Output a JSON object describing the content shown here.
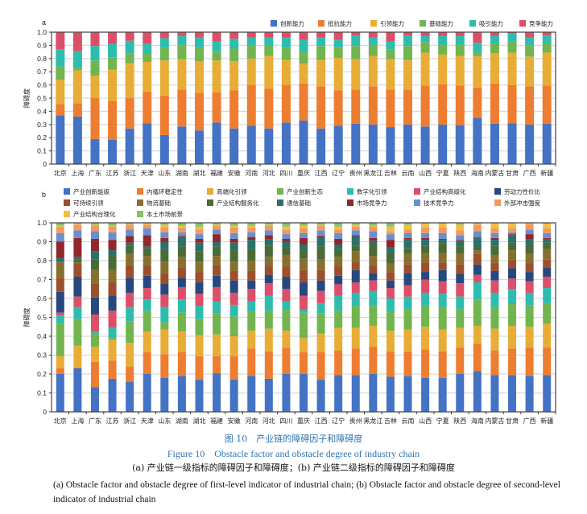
{
  "categories": [
    "北京",
    "上海",
    "广东",
    "江苏",
    "浙江",
    "天津",
    "山东",
    "湖南",
    "湖北",
    "福建",
    "安徽",
    "河南",
    "河北",
    "四川",
    "重庆",
    "江西",
    "辽宁",
    "贵州",
    "黑龙江",
    "吉林",
    "云南",
    "山西",
    "宁夏",
    "陕西",
    "海南",
    "内蒙古",
    "甘肃",
    "广西",
    "新疆"
  ],
  "caption": {
    "cn_title": "图 10　产业链的障碍因子和障碍度",
    "en_title": "Figure 10　Obstacle factor and obstacle degree of industry chain",
    "cn_sub": "(a) 产业链一级指标的障碍因子和障碍度；(b) 产业链二级指标的障碍因子和障碍度",
    "en_sub": "(a) Obstacle factor and obstacle degree of first-level indicator of industrial chain; (b) Obstacle factor and obstacle degree of second-level indicator of industrial chain"
  },
  "chart_data": [
    {
      "panel": "a",
      "type": "bar",
      "stacked": true,
      "ylabel": "障碍度",
      "ylim": [
        0,
        1.0
      ],
      "yticks": [
        "0",
        "0.1",
        "0.2",
        "0.3",
        "0.4",
        "0.5",
        "0.6",
        "0.7",
        "0.8",
        "0.9",
        "1.0"
      ],
      "grid": true,
      "legend": "top-right",
      "series": [
        {
          "name": "创新能力",
          "color": "#4472c4",
          "values": [
            0.37,
            0.36,
            0.19,
            0.185,
            0.27,
            0.31,
            0.22,
            0.285,
            0.255,
            0.315,
            0.27,
            0.29,
            0.27,
            0.315,
            0.33,
            0.27,
            0.29,
            0.305,
            0.3,
            0.28,
            0.3,
            0.285,
            0.3,
            0.295,
            0.35,
            0.305,
            0.31,
            0.3,
            0.305
          ]
        },
        {
          "name": "抵抗能力",
          "color": "#ed7d31",
          "values": [
            0.085,
            0.1,
            0.31,
            0.295,
            0.23,
            0.24,
            0.3,
            0.28,
            0.285,
            0.23,
            0.29,
            0.31,
            0.3,
            0.285,
            0.28,
            0.32,
            0.27,
            0.26,
            0.29,
            0.285,
            0.265,
            0.31,
            0.305,
            0.3,
            0.23,
            0.305,
            0.29,
            0.29,
            0.29
          ]
        },
        {
          "name": "引领能力",
          "color": "#e8ad36",
          "values": [
            0.185,
            0.25,
            0.17,
            0.235,
            0.265,
            0.225,
            0.265,
            0.23,
            0.24,
            0.24,
            0.22,
            0.2,
            0.25,
            0.19,
            0.15,
            0.2,
            0.245,
            0.23,
            0.23,
            0.23,
            0.225,
            0.25,
            0.225,
            0.225,
            0.24,
            0.23,
            0.245,
            0.225,
            0.25
          ]
        },
        {
          "name": "基础能力",
          "color": "#72b450",
          "values": [
            0.1,
            0.02,
            0.115,
            0.095,
            0.075,
            0.06,
            0.095,
            0.11,
            0.105,
            0.07,
            0.095,
            0.1,
            0.08,
            0.09,
            0.09,
            0.105,
            0.08,
            0.1,
            0.085,
            0.075,
            0.105,
            0.08,
            0.075,
            0.085,
            0.025,
            0.075,
            0.085,
            0.085,
            0.07
          ]
        },
        {
          "name": "吸引能力",
          "color": "#2ebcaf",
          "values": [
            0.13,
            0.125,
            0.11,
            0.1,
            0.095,
            0.075,
            0.075,
            0.065,
            0.075,
            0.075,
            0.075,
            0.06,
            0.06,
            0.08,
            0.09,
            0.065,
            0.06,
            0.08,
            0.055,
            0.06,
            0.08,
            0.045,
            0.065,
            0.065,
            0.075,
            0.055,
            0.06,
            0.06,
            0.06
          ]
        },
        {
          "name": "竞争能力",
          "color": "#dc4f69",
          "values": [
            0.13,
            0.14,
            0.105,
            0.09,
            0.065,
            0.09,
            0.05,
            0.03,
            0.04,
            0.07,
            0.05,
            0.04,
            0.04,
            0.04,
            0.06,
            0.04,
            0.055,
            0.025,
            0.04,
            0.07,
            0.025,
            0.03,
            0.03,
            0.03,
            0.08,
            0.03,
            0.01,
            0.045,
            0.03
          ]
        }
      ]
    },
    {
      "panel": "b",
      "type": "bar",
      "stacked": true,
      "ylabel": "障碍度",
      "ylim": [
        0,
        1.0
      ],
      "yticks": [
        "0",
        "0.1",
        "0.2",
        "0.3",
        "0.4",
        "0.5",
        "0.6",
        "0.7",
        "0.8",
        "0.9",
        "1.0"
      ],
      "grid": true,
      "legend": "top",
      "series": [
        {
          "name": "产业创新能级",
          "color": "#4472c4",
          "values": [
            0.2,
            0.23,
            0.13,
            0.175,
            0.16,
            0.2,
            0.18,
            0.19,
            0.17,
            0.205,
            0.17,
            0.19,
            0.175,
            0.2,
            0.2,
            0.17,
            0.195,
            0.195,
            0.2,
            0.185,
            0.19,
            0.18,
            0.18,
            0.2,
            0.215,
            0.195,
            0.195,
            0.19,
            0.195
          ]
        },
        {
          "name": "内循环稳定性",
          "color": "#ed7d31",
          "values": [
            0.03,
            0.005,
            0.135,
            0.095,
            0.08,
            0.115,
            0.125,
            0.125,
            0.125,
            0.09,
            0.125,
            0.145,
            0.145,
            0.14,
            0.115,
            0.145,
            0.13,
            0.14,
            0.145,
            0.135,
            0.13,
            0.15,
            0.14,
            0.14,
            0.145,
            0.13,
            0.14,
            0.15,
            0.145
          ]
        },
        {
          "name": "高端化引领",
          "color": "#e8ad36",
          "values": [
            0.065,
            0.115,
            0.08,
            0.11,
            0.125,
            0.11,
            0.13,
            0.11,
            0.11,
            0.115,
            0.105,
            0.095,
            0.12,
            0.09,
            0.075,
            0.1,
            0.12,
            0.11,
            0.11,
            0.11,
            0.115,
            0.12,
            0.115,
            0.105,
            0.095,
            0.115,
            0.12,
            0.11,
            0.125
          ]
        },
        {
          "name": "产业创新生态",
          "color": "#72b450",
          "values": [
            0.17,
            0.14,
            0.07,
            0.01,
            0.115,
            0.11,
            0.04,
            0.1,
            0.085,
            0.11,
            0.105,
            0.1,
            0.095,
            0.11,
            0.135,
            0.105,
            0.09,
            0.115,
            0.105,
            0.1,
            0.11,
            0.11,
            0.12,
            0.1,
            0.14,
            0.115,
            0.115,
            0.115,
            0.11
          ]
        },
        {
          "name": "数字化引领",
          "color": "#2ebcaf",
          "values": [
            0.045,
            0.065,
            0.01,
            0.055,
            0.075,
            0.06,
            0.08,
            0.07,
            0.07,
            0.065,
            0.06,
            0.055,
            0.08,
            0.045,
            0.015,
            0.055,
            0.08,
            0.07,
            0.08,
            0.07,
            0.065,
            0.07,
            0.07,
            0.065,
            0.09,
            0.075,
            0.08,
            0.065,
            0.08
          ]
        },
        {
          "name": "产业结构高级化",
          "color": "#dc4f69",
          "values": [
            0.015,
            0.055,
            0.09,
            0.09,
            0.075,
            0.06,
            0.065,
            0.065,
            0.065,
            0.075,
            0.065,
            0.065,
            0.065,
            0.065,
            0.075,
            0.065,
            0.06,
            0.055,
            0.055,
            0.055,
            0.06,
            0.07,
            0.065,
            0.07,
            0.04,
            0.065,
            0.055,
            0.06,
            0.06
          ]
        },
        {
          "name": "劳动力性价比",
          "color": "#27487f",
          "values": [
            0.11,
            0.105,
            0.09,
            0.08,
            0.08,
            0.065,
            0.06,
            0.05,
            0.06,
            0.06,
            0.065,
            0.045,
            0.045,
            0.065,
            0.07,
            0.055,
            0.045,
            0.065,
            0.04,
            0.04,
            0.065,
            0.04,
            0.06,
            0.05,
            0.055,
            0.05,
            0.055,
            0.05,
            0.05
          ]
        },
        {
          "name": "可持续引领",
          "color": "#9b4f2c",
          "values": [
            0.075,
            0.07,
            0.075,
            0.07,
            0.065,
            0.055,
            0.055,
            0.055,
            0.055,
            0.055,
            0.05,
            0.05,
            0.045,
            0.055,
            0.065,
            0.055,
            0.05,
            0.045,
            0.04,
            0.045,
            0.045,
            0.05,
            0.04,
            0.05,
            0.055,
            0.04,
            0.04,
            0.045,
            0.04
          ]
        },
        {
          "name": "物流基础",
          "color": "#87702f",
          "values": [
            0.08,
            0.005,
            0.07,
            0.065,
            0.06,
            0.05,
            0.06,
            0.055,
            0.055,
            0.05,
            0.05,
            0.055,
            0.05,
            0.06,
            0.06,
            0.055,
            0.05,
            0.055,
            0.05,
            0.045,
            0.055,
            0.05,
            0.05,
            0.055,
            0.02,
            0.045,
            0.055,
            0.05,
            0.055
          ]
        },
        {
          "name": "产业结构服务化",
          "color": "#4a6b35",
          "values": [
            0.005,
            0.015,
            0.055,
            0.08,
            0.045,
            0.04,
            0.065,
            0.055,
            0.055,
            0.05,
            0.06,
            0.06,
            0.06,
            0.04,
            0.045,
            0.07,
            0.04,
            0.03,
            0.06,
            0.055,
            0.03,
            0.04,
            0.05,
            0.04,
            0.015,
            0.05,
            0.04,
            0.05,
            0.035
          ]
        },
        {
          "name": "通信基础",
          "color": "#2b7069",
          "values": [
            0.02,
            0.015,
            0.045,
            0.025,
            0.015,
            0.01,
            0.04,
            0.05,
            0.045,
            0.025,
            0.04,
            0.05,
            0.035,
            0.03,
            0.03,
            0.045,
            0.025,
            0.05,
            0.02,
            0.03,
            0.05,
            0.03,
            0.02,
            0.03,
            0.05,
            0.03,
            0.04,
            0.03,
            0.02
          ]
        },
        {
          "name": "市场竞争力",
          "color": "#92262d",
          "values": [
            0.085,
            0.1,
            0.065,
            0.055,
            0.035,
            0.06,
            0.02,
            0.005,
            0.02,
            0.04,
            0.02,
            0.015,
            0.02,
            0.015,
            0.035,
            0.01,
            0.03,
            0.005,
            0.015,
            0.04,
            0.005,
            0.01,
            0.005,
            0.005,
            0.005,
            0.01,
            0.005,
            0.025,
            0.005
          ]
        },
        {
          "name": "技术竞争力",
          "color": "#6a8fcf",
          "values": [
            0.045,
            0.04,
            0.04,
            0.04,
            0.035,
            0.035,
            0.03,
            0.02,
            0.025,
            0.025,
            0.03,
            0.025,
            0.025,
            0.025,
            0.025,
            0.03,
            0.03,
            0.025,
            0.035,
            0.03,
            0.025,
            0.025,
            0.03,
            0.025,
            0.03,
            0.025,
            0.01,
            0.025,
            0.025
          ]
        },
        {
          "name": "外部冲击强度",
          "color": "#ee9a63",
          "values": [
            0.035,
            0.03,
            0.03,
            0.03,
            0.025,
            0.02,
            0.025,
            0.025,
            0.025,
            0.02,
            0.03,
            0.025,
            0.025,
            0.025,
            0.025,
            0.025,
            0.02,
            0.02,
            0.025,
            0.015,
            0.02,
            0.03,
            0.03,
            0.025,
            0.035,
            0.025,
            0.02,
            0.03,
            0.025
          ]
        },
        {
          "name": "产业结构合理化",
          "color": "#f5bd45",
          "values": [
            0.005,
            0.005,
            0.005,
            0.005,
            0.003,
            0.005,
            0.015,
            0.01,
            0.015,
            0.005,
            0.01,
            0.01,
            0.005,
            0.015,
            0.015,
            0.005,
            0.015,
            0.01,
            0.005,
            0.025,
            0.025,
            0.02,
            0.02,
            0.03,
            0.005,
            0.03,
            0.03,
            0.005,
            0.025
          ]
        },
        {
          "name": "本土市场前景",
          "color": "#86c06c",
          "values": [
            0.015,
            0.02,
            0.02,
            0.015,
            0.01,
            0.015,
            0.015,
            0.015,
            0.01,
            0.015,
            0.015,
            0.01,
            0.015,
            0.015,
            0.015,
            0.015,
            0.01,
            0.015,
            0.015,
            0.015,
            0.01,
            0.005,
            0.005,
            0.01,
            0.01,
            0.005,
            0.01,
            0.015,
            0.01
          ]
        }
      ]
    }
  ]
}
